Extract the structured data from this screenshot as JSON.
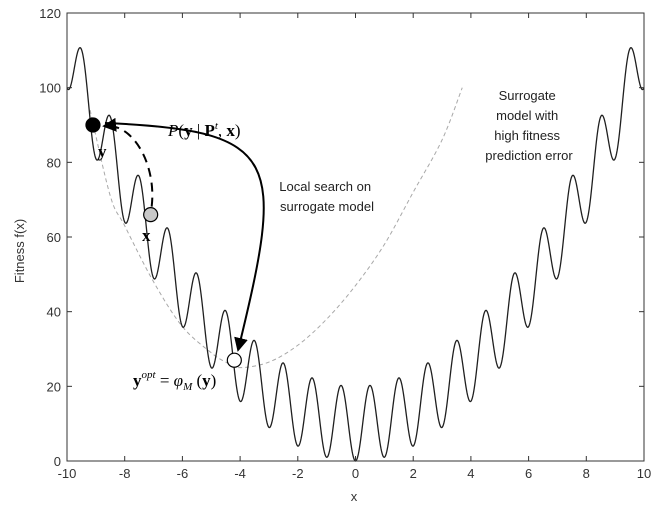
{
  "chart_data": {
    "type": "line",
    "title": "",
    "xlabel": "x",
    "ylabel": "Fitness f(x)",
    "xlim": [
      -10,
      10
    ],
    "ylim": [
      0,
      120
    ],
    "xticks": [
      -10,
      -8,
      -6,
      -4,
      -2,
      0,
      2,
      4,
      6,
      8,
      10
    ],
    "yticks": [
      0,
      20,
      40,
      60,
      80,
      100,
      120
    ],
    "grid": false,
    "colors": {
      "fitness": "#1f1f1f",
      "surrogate": "#a8a8a8",
      "arrow": "#000000",
      "grey_point": "#c8c8c8"
    },
    "series": [
      {
        "style": "solid",
        "function": "x^2 + 10 - 10*cos(2*pi*x)",
        "x_range": [
          -10,
          10
        ]
      },
      {
        "style": "dashed",
        "x": [
          -9.2,
          -8.5,
          -8,
          -7,
          -6,
          -5,
          -4.5,
          -4,
          -3,
          -2,
          -1,
          0,
          1,
          2,
          3,
          3.7
        ],
        "y": [
          94,
          71,
          63,
          48,
          36,
          29,
          26.5,
          25,
          26.5,
          31,
          38,
          47,
          58,
          72,
          86,
          100
        ]
      }
    ],
    "points": [
      {
        "label": "y",
        "x": -9.1,
        "y": 90,
        "fill": "black"
      },
      {
        "label": "x",
        "x": -7.1,
        "y": 66,
        "fill": "grey"
      },
      {
        "label": "y_opt",
        "x": -4.2,
        "y": 27,
        "fill": "white"
      }
    ],
    "annotations": {
      "surrogate_line1": "Surrogate",
      "surrogate_line2": "model with",
      "surrogate_line3": "high fitness",
      "surrogate_line4": "prediction error",
      "local_line1": "Local search on",
      "local_line2": "surrogate model",
      "prob_P": "P",
      "prob_open": "(",
      "prob_y": "y",
      "prob_bar": " | ",
      "prob_Pbold": "P",
      "prob_t": "t",
      "prob_comma": ", ",
      "prob_x": "x",
      "prob_close": ")",
      "label_y": "y",
      "label_x": "x",
      "yopt_y": "y",
      "yopt_sup": "opt",
      "yopt_eq": " = ",
      "yopt_phi": "φ",
      "yopt_sub": "M",
      "yopt_arg_open": " (",
      "yopt_arg_y": "y",
      "yopt_arg_close": ")"
    }
  }
}
